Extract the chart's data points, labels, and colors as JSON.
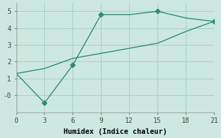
{
  "xlabel": "Humidex (Indice chaleur)",
  "line1_x": [
    0,
    3,
    6,
    9,
    12,
    15,
    18,
    21
  ],
  "line1_y": [
    1.3,
    -0.45,
    1.8,
    4.8,
    4.8,
    5.0,
    4.6,
    4.4
  ],
  "line1_marker_x": [
    3,
    6,
    9,
    15,
    21
  ],
  "line1_marker_y": [
    -0.45,
    1.8,
    4.8,
    5.0,
    4.4
  ],
  "line2_x": [
    0,
    3,
    6,
    9,
    12,
    15,
    18,
    21
  ],
  "line2_y": [
    1.3,
    1.6,
    2.2,
    2.5,
    2.8,
    3.1,
    3.8,
    4.4
  ],
  "line_color": "#2e8b74",
  "bg_color": "#cde8e0",
  "plot_bg": "#cde8e0",
  "grid_color": "#aacfc5",
  "xlim": [
    0,
    21
  ],
  "ylim": [
    -1.0,
    5.5
  ],
  "xticks": [
    0,
    3,
    6,
    9,
    12,
    15,
    18,
    21
  ],
  "yticks": [
    0,
    1,
    2,
    3,
    4,
    5
  ],
  "ytick_labels": [
    "-0",
    "1",
    "2",
    "3",
    "4",
    "5"
  ]
}
